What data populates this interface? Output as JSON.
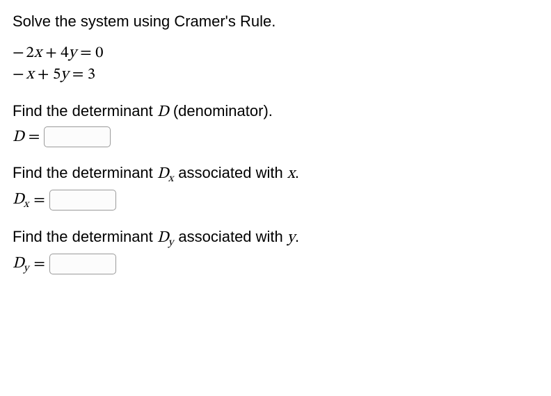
{
  "title": "Solve the system using Cramer's Rule.",
  "equations": {
    "eq1": "− 2x + 4y = 0",
    "eq2": "− x + 5y = 3"
  },
  "prompts": {
    "d_prompt_a": "Find the determinant ",
    "d_symbol": "D",
    "d_prompt_b": " (denominator).",
    "d_label_lhs": "D",
    "d_equals": " = ",
    "dx_prompt_a": "Find the determinant ",
    "dx_symbol_base": "D",
    "dx_symbol_sub": "x",
    "dx_prompt_b": " associated with ",
    "dx_var": "x",
    "dx_prompt_c": ".",
    "dx_label_base": "D",
    "dx_label_sub": "x",
    "dy_prompt_a": "Find the determinant ",
    "dy_symbol_base": "D",
    "dy_symbol_sub": "y",
    "dy_prompt_b": " associated with ",
    "dy_var": "y",
    "dy_prompt_c": ".",
    "dy_label_base": "D",
    "dy_label_sub": "y"
  },
  "inputs": {
    "d_value": "",
    "dx_value": "",
    "dy_value": ""
  },
  "style": {
    "text_color": "#000000",
    "bg_color": "#ffffff",
    "input_border": "#9a9a9a"
  }
}
